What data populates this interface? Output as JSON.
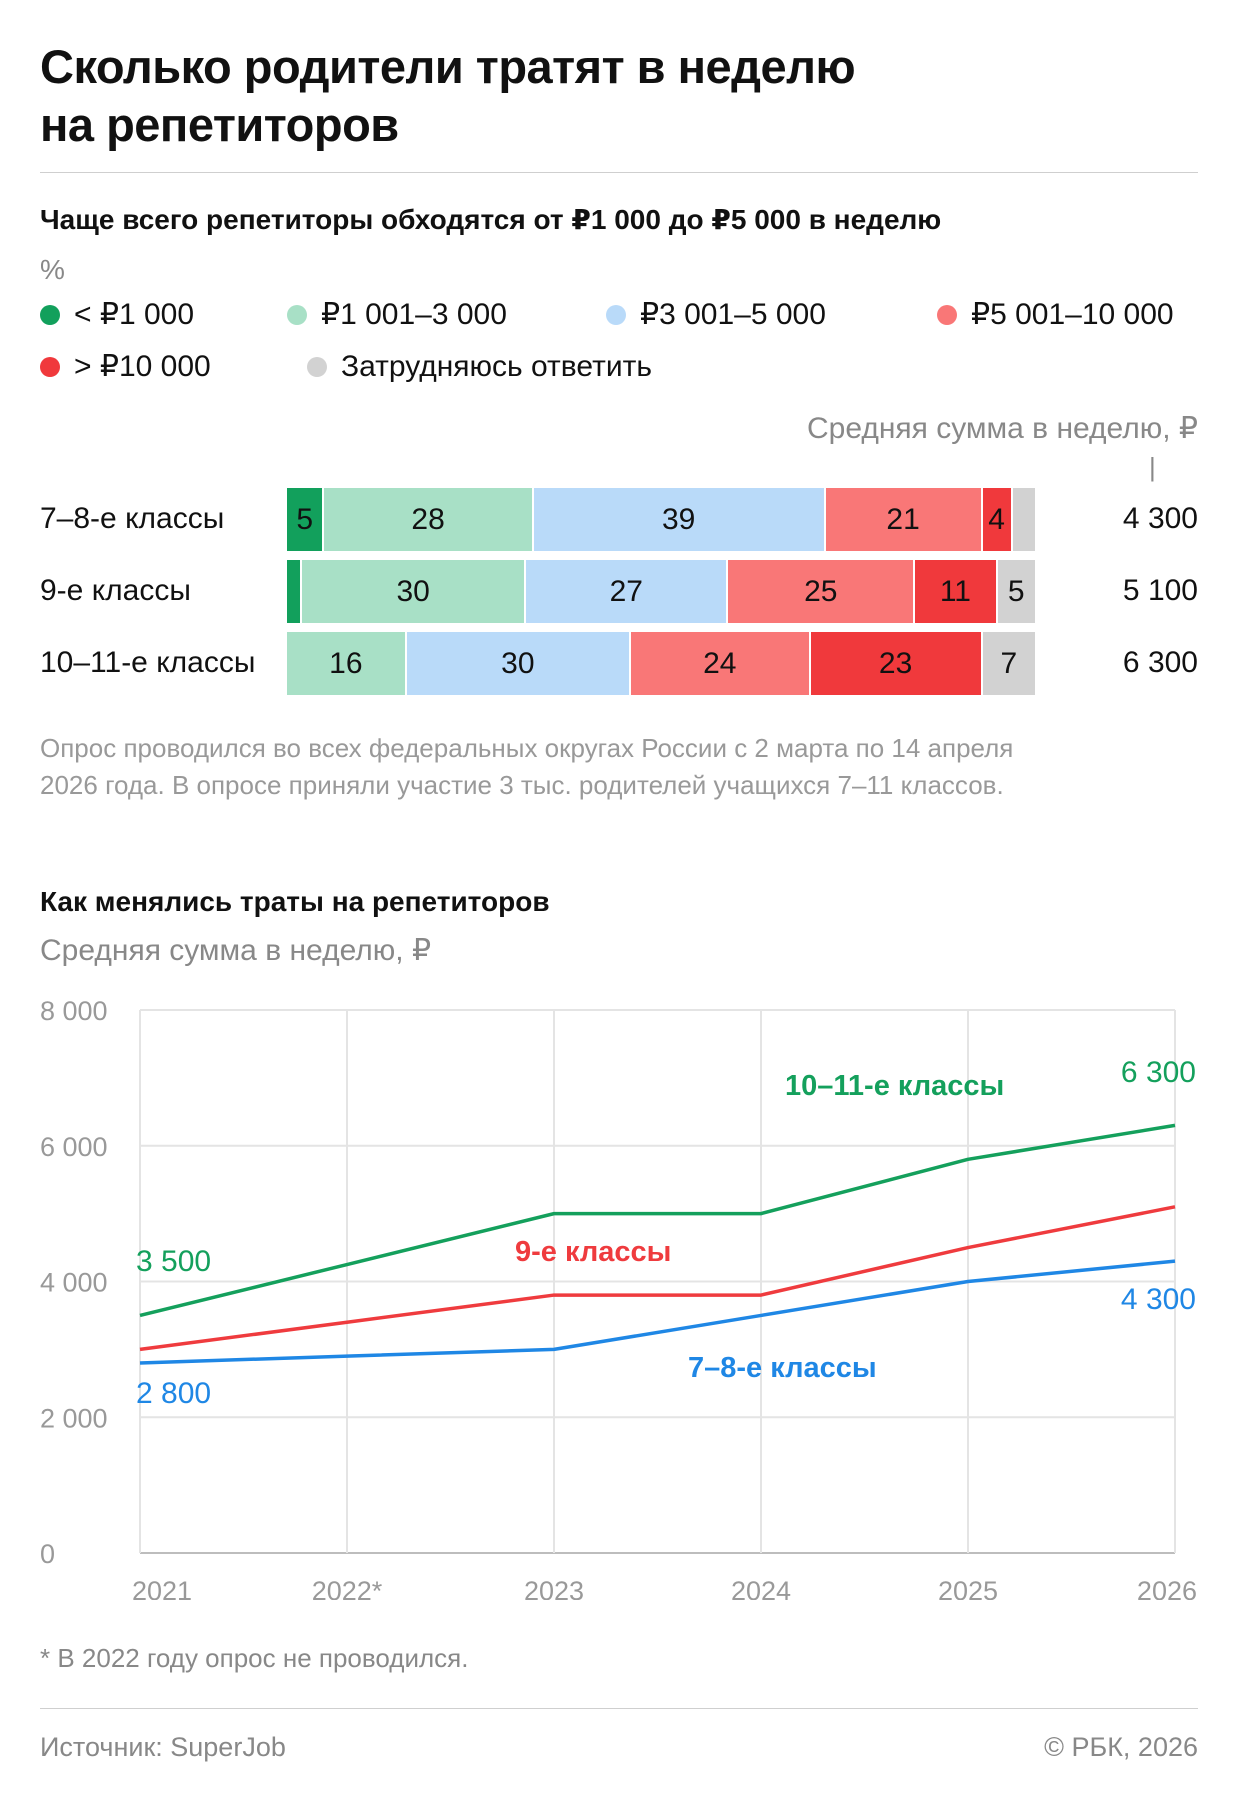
{
  "header": {
    "title_line1": "Сколько родители тратят в неделю",
    "title_line2": "на репетиторов"
  },
  "colors": {
    "lt1000": "#12a05c",
    "r1001_3000": "#a8e0c6",
    "r3001_5000": "#b9daf9",
    "r5001_10000": "#f97777",
    "gt10000": "#f0393c",
    "unsure": "#d2d2d2",
    "line_10_11": "#14a05c",
    "line_9": "#ef3b3e",
    "line_7_8": "#1f87e5"
  },
  "section1": {
    "subtitle": "Чаще всего репетиторы обходятся от ₽1 000 до ₽5 000 в неделю",
    "unit": "%",
    "avg_header": "Средняя сумма в неделю, ₽",
    "avg_tick": "|",
    "legend": [
      {
        "label": "< ₽1 000",
        "color_key": "lt1000"
      },
      {
        "label": "₽1 001–3 000",
        "color_key": "r1001_3000"
      },
      {
        "label": "₽3 001–5 000",
        "color_key": "r3001_5000"
      },
      {
        "label": "₽5 001–10 000",
        "color_key": "r5001_10000"
      },
      {
        "label": "> ₽10 000",
        "color_key": "gt10000"
      },
      {
        "label": "Затрудняюсь ответить",
        "color_key": "unsure"
      }
    ],
    "rows": [
      {
        "label": "7–8-е классы",
        "average": "4 300",
        "values": [
          5,
          28,
          39,
          21,
          4,
          3
        ],
        "shown": [
          "5",
          "28",
          "39",
          "21",
          "4",
          ""
        ]
      },
      {
        "label": "9-е классы",
        "average": "5 100",
        "values": [
          2,
          30,
          27,
          25,
          11,
          5
        ],
        "shown": [
          "",
          "30",
          "27",
          "25",
          "11",
          "5"
        ]
      },
      {
        "label": "10–11-е классы",
        "average": "6 300",
        "values": [
          0,
          16,
          30,
          24,
          23,
          7
        ],
        "shown": [
          "",
          "16",
          "30",
          "24",
          "23",
          "7"
        ]
      }
    ],
    "note_line1": "Опрос проводился во всех федеральных округах России с 2 марта по 14 апреля",
    "note_line2": "2026 года. В опросе приняли участие 3 тыс. родителей учащихся 7–11 классов."
  },
  "section2": {
    "subtitle": "Как менялись траты на репетиторов",
    "unit": "Средняя сумма в неделю, ₽",
    "footnote": "* В 2022 году опрос не проводился."
  },
  "chart_data": [
    {
      "type": "bar",
      "orientation": "horizontal",
      "stacked": true,
      "title": "Чаще всего репетиторы обходятся от ₽1 000 до ₽5 000 в неделю",
      "unit": "%",
      "categories": [
        "7–8-е классы",
        "9-е классы",
        "10–11-е классы"
      ],
      "series": [
        {
          "name": "< ₽1 000",
          "values": [
            5,
            2,
            0
          ]
        },
        {
          "name": "₽1 001–3 000",
          "values": [
            28,
            30,
            16
          ]
        },
        {
          "name": "₽3 001–5 000",
          "values": [
            39,
            27,
            30
          ]
        },
        {
          "name": "₽5 001–10 000",
          "values": [
            21,
            25,
            24
          ]
        },
        {
          "name": "> ₽10 000",
          "values": [
            4,
            11,
            23
          ]
        },
        {
          "name": "Затрудняюсь ответить",
          "values": [
            3,
            5,
            7
          ]
        }
      ],
      "average_per_week": {
        "label": "Средняя сумма в неделю, ₽",
        "values": [
          4300,
          5100,
          6300
        ]
      },
      "legend": "top"
    },
    {
      "type": "line",
      "title": "Как менялись траты на репетиторов",
      "ylabel": "Средняя сумма в неделю, ₽",
      "x": [
        "2021",
        "2022*",
        "2023",
        "2024",
        "2025",
        "2026"
      ],
      "ylim": [
        0,
        8000
      ],
      "yticks": [
        0,
        2000,
        4000,
        6000,
        8000
      ],
      "ytick_labels": [
        "0",
        "2 000",
        "4 000",
        "6 000",
        "8 000"
      ],
      "grid": true,
      "series": [
        {
          "name": "10–11-е классы",
          "color_key": "line_10_11",
          "values": [
            3500,
            4250,
            5000,
            5000,
            5800,
            6300
          ],
          "first_label": "3 500",
          "last_label": "6 300"
        },
        {
          "name": "9-е классы",
          "color_key": "line_9",
          "values": [
            3000,
            3400,
            3800,
            3800,
            4500,
            5100
          ]
        },
        {
          "name": "7–8-е классы",
          "color_key": "line_7_8",
          "values": [
            2800,
            2900,
            3000,
            3500,
            4000,
            4300
          ],
          "first_label": "2 800",
          "last_label": "4 300"
        }
      ]
    }
  ],
  "footer": {
    "source": "Источник: SuperJob",
    "copyright": "© РБК, 2026"
  }
}
